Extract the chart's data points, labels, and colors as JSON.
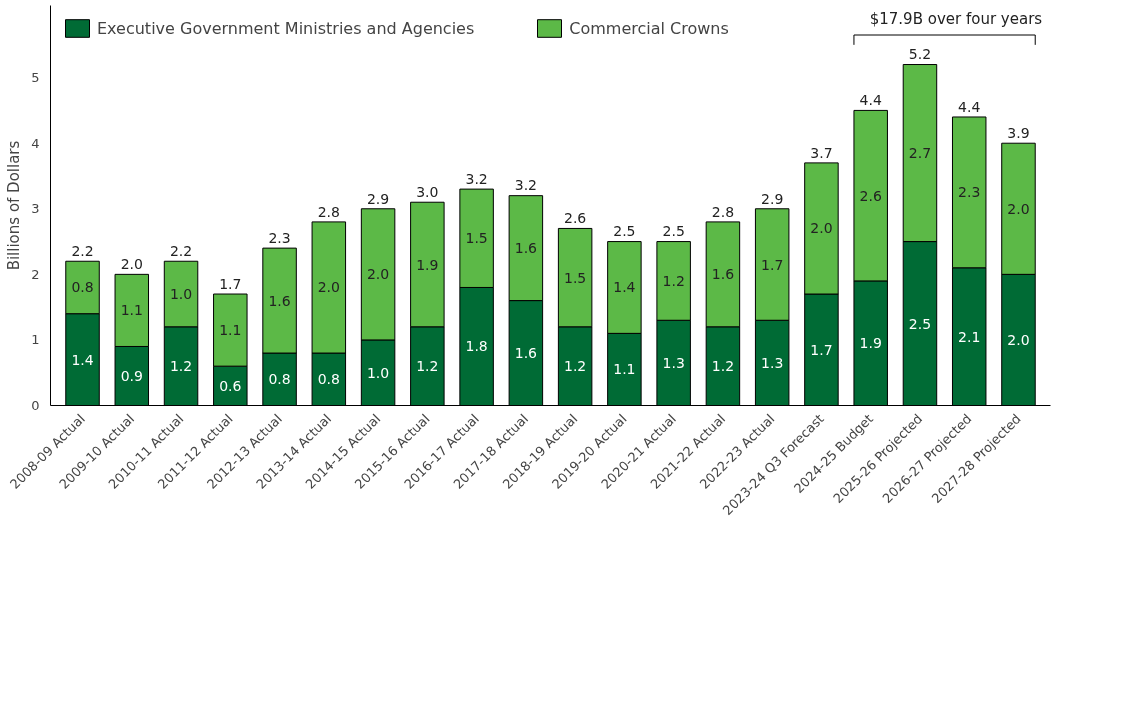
{
  "chart_data": {
    "type": "bar",
    "stacked": true,
    "ylabel": "Billions of Dollars",
    "categories": [
      "2008-09 Actual",
      "2009-10 Actual",
      "2010-11 Actual",
      "2011-12 Actual",
      "2012-13 Actual",
      "2013-14 Actual",
      "2014-15 Actual",
      "2015-16 Actual",
      "2016-17 Actual",
      "2017-18 Actual",
      "2018-19 Actual",
      "2019-20 Actual",
      "2020-21 Actual",
      "2021-22 Actual",
      "2022-23 Actual",
      "2023-24 Q3 Forecast",
      "2024-25 Budget",
      "2025-26 Projected",
      "2026-27 Projected",
      "2027-28 Projected"
    ],
    "series": [
      {
        "name": "Executive Government Ministries and Agencies",
        "color": "#006b35",
        "values": [
          1.4,
          0.9,
          1.2,
          0.6,
          0.8,
          0.8,
          1.0,
          1.2,
          1.8,
          1.6,
          1.2,
          1.1,
          1.3,
          1.2,
          1.3,
          1.7,
          1.9,
          2.5,
          2.1,
          2.0
        ],
        "value_labels": [
          "1.4",
          "0.9",
          "1.2",
          "0.6",
          "0.8",
          "0.8",
          "1.0",
          "1.2",
          "1.8",
          "1.6",
          "1.2",
          "1.1",
          "1.3",
          "1.2",
          "1.3",
          "1.7",
          "1.9",
          "2.5",
          "2.1",
          "2.0"
        ]
      },
      {
        "name": "Commercial Crowns",
        "color": "#5cb947",
        "values": [
          0.8,
          1.1,
          1.0,
          1.1,
          1.6,
          2.0,
          2.0,
          1.9,
          1.5,
          1.6,
          1.5,
          1.4,
          1.2,
          1.6,
          1.7,
          2.0,
          2.6,
          2.7,
          2.3,
          2.0
        ],
        "value_labels": [
          "0.8",
          "1.1",
          "1.0",
          "1.1",
          "1.6",
          "2.0",
          "2.0",
          "1.9",
          "1.5",
          "1.6",
          "1.5",
          "1.4",
          "1.2",
          "1.6",
          "1.7",
          "2.0",
          "2.6",
          "2.7",
          "2.3",
          "2.0"
        ]
      }
    ],
    "totals": [
      "2.2",
      "2.0",
      "2.2",
      "1.7",
      "2.3",
      "2.8",
      "2.9",
      "3.0",
      "3.2",
      "3.2",
      "2.6",
      "2.5",
      "2.5",
      "2.8",
      "2.9",
      "3.7",
      "4.4",
      "5.2",
      "4.4",
      "3.9"
    ],
    "ylim": [
      0,
      6.1
    ],
    "yticks": [
      0,
      1,
      2,
      3,
      4,
      5
    ],
    "grid": false,
    "legend": "top left",
    "annotations": [
      "$17.9B over four years"
    ]
  }
}
